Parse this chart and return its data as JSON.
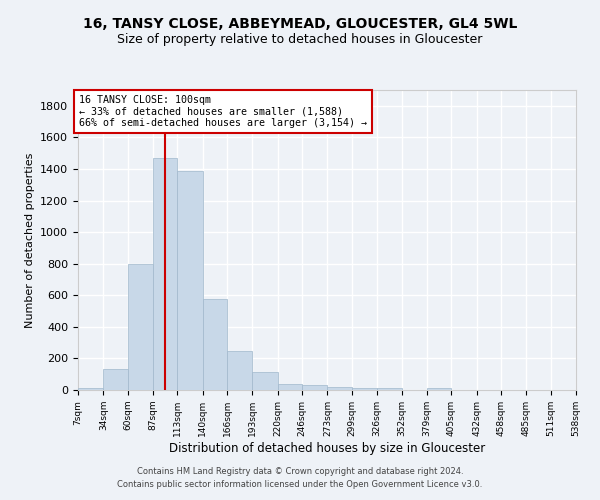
{
  "title_line1": "16, TANSY CLOSE, ABBEYMEAD, GLOUCESTER, GL4 5WL",
  "title_line2": "Size of property relative to detached houses in Gloucester",
  "xlabel": "Distribution of detached houses by size in Gloucester",
  "ylabel": "Number of detached properties",
  "bin_edges": [
    7,
    34,
    60,
    87,
    113,
    140,
    166,
    193,
    220,
    246,
    273,
    299,
    326,
    352,
    379,
    405,
    432,
    458,
    485,
    511,
    538
  ],
  "bar_heights": [
    10,
    130,
    800,
    1470,
    1390,
    575,
    250,
    115,
    40,
    30,
    20,
    15,
    10,
    0,
    15,
    0,
    0,
    0,
    0,
    0
  ],
  "bar_color": "#c8d8e8",
  "bar_edgecolor": "#a0b8cc",
  "vline_x": 100,
  "vline_color": "#cc0000",
  "annotation_title": "16 TANSY CLOSE: 100sqm",
  "annotation_line2": "← 33% of detached houses are smaller (1,588)",
  "annotation_line3": "66% of semi-detached houses are larger (3,154) →",
  "annotation_box_color": "#cc0000",
  "annotation_bg": "#ffffff",
  "ylim": [
    0,
    1900
  ],
  "yticks": [
    0,
    200,
    400,
    600,
    800,
    1000,
    1200,
    1400,
    1600,
    1800
  ],
  "footer_line1": "Contains HM Land Registry data © Crown copyright and database right 2024.",
  "footer_line2": "Contains public sector information licensed under the Open Government Licence v3.0.",
  "background_color": "#eef2f7",
  "grid_color": "#ffffff"
}
